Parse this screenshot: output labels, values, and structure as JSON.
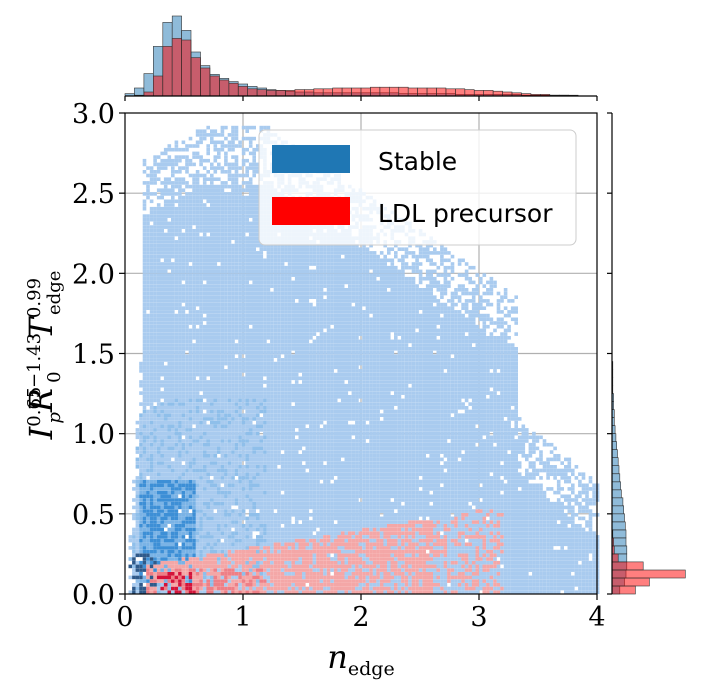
{
  "chart_data": [
    {
      "type": "heatmap",
      "name": "joint-density",
      "xlabel": "n_edge",
      "ylabel": "I_p^0.65 R_0^-1.43 T_edge^0.99",
      "xlim": [
        0,
        4
      ],
      "ylim": [
        0,
        3
      ],
      "x_ticks": [
        "0",
        "1",
        "2",
        "3",
        "4"
      ],
      "y_ticks": [
        "0.0",
        "0.5",
        "1.0",
        "1.5",
        "2.0",
        "2.5",
        "3.0"
      ],
      "grid": true,
      "legend": {
        "position": "top-right",
        "entries": [
          {
            "label": "Stable",
            "color": "#1f77b4"
          },
          {
            "label": "LDL precursor",
            "color": "#ff0000"
          }
        ]
      },
      "series": [
        {
          "name": "Stable",
          "color": "#1f77b4",
          "region": {
            "x_range": [
              0.05,
              4.0
            ],
            "y_range": [
              0.0,
              3.0
            ]
          },
          "dense_core": {
            "x_range": [
              0.1,
              0.6
            ],
            "y_range": [
              0.05,
              0.7
            ]
          }
        },
        {
          "name": "LDL precursor",
          "color": "#ff0000",
          "region": {
            "x_range": [
              0.15,
              3.2
            ],
            "y_range": [
              0.0,
              0.55
            ]
          },
          "dense_core": {
            "x_range": [
              0.25,
              0.6
            ],
            "y_range": [
              0.02,
              0.12
            ]
          }
        }
      ]
    },
    {
      "type": "bar",
      "name": "top-marginal-histogram",
      "axis": "n_edge",
      "xlim": [
        0,
        4
      ],
      "bin_width": 0.08,
      "series": [
        {
          "name": "Stable",
          "color": "#1f77b4",
          "values": [
            0.03,
            0.1,
            0.28,
            0.62,
            0.92,
            1.0,
            0.82,
            0.55,
            0.38,
            0.27,
            0.22,
            0.18,
            0.15,
            0.12,
            0.1,
            0.08,
            0.07,
            0.06,
            0.05,
            0.05,
            0.04,
            0.04,
            0.04,
            0.04,
            0.04,
            0.04,
            0.04,
            0.04,
            0.04,
            0.03,
            0.03,
            0.03,
            0.03,
            0.03,
            0.03,
            0.02,
            0.02,
            0.02,
            0.02,
            0.02,
            0.02,
            0.02,
            0.01,
            0.01,
            0.01,
            0.01,
            0.01,
            0.01,
            0.0,
            0.0
          ]
        },
        {
          "name": "LDL precursor",
          "color": "#ff0000",
          "values": [
            0.0,
            0.01,
            0.05,
            0.25,
            0.62,
            0.72,
            0.7,
            0.48,
            0.35,
            0.25,
            0.2,
            0.16,
            0.12,
            0.09,
            0.08,
            0.07,
            0.07,
            0.07,
            0.08,
            0.08,
            0.09,
            0.09,
            0.1,
            0.1,
            0.1,
            0.1,
            0.11,
            0.11,
            0.11,
            0.11,
            0.1,
            0.1,
            0.1,
            0.1,
            0.09,
            0.09,
            0.08,
            0.07,
            0.07,
            0.06,
            0.05,
            0.04,
            0.03,
            0.02,
            0.02,
            0.01,
            0.01,
            0.0,
            0.0,
            0.0
          ]
        }
      ]
    },
    {
      "type": "bar",
      "name": "right-marginal-histogram",
      "axis": "I_p^0.65 R_0^-1.43 T_edge^0.99",
      "ylim": [
        0,
        3
      ],
      "bin_width": 0.05,
      "series": [
        {
          "name": "Stable",
          "color": "#1f77b4",
          "values": [
            0.1,
            0.16,
            0.18,
            0.19,
            0.19,
            0.19,
            0.18,
            0.18,
            0.17,
            0.16,
            0.15,
            0.14,
            0.12,
            0.11,
            0.1,
            0.09,
            0.08,
            0.07,
            0.06,
            0.05,
            0.04,
            0.03,
            0.03,
            0.02,
            0.02,
            0.01,
            0.01,
            0.01,
            0.01,
            0.0
          ]
        },
        {
          "name": "LDL precursor",
          "color": "#ff0000",
          "values": [
            0.3,
            0.48,
            0.94,
            0.4,
            0.08,
            0.03,
            0.02,
            0.01,
            0.0,
            0.0
          ]
        }
      ]
    }
  ]
}
